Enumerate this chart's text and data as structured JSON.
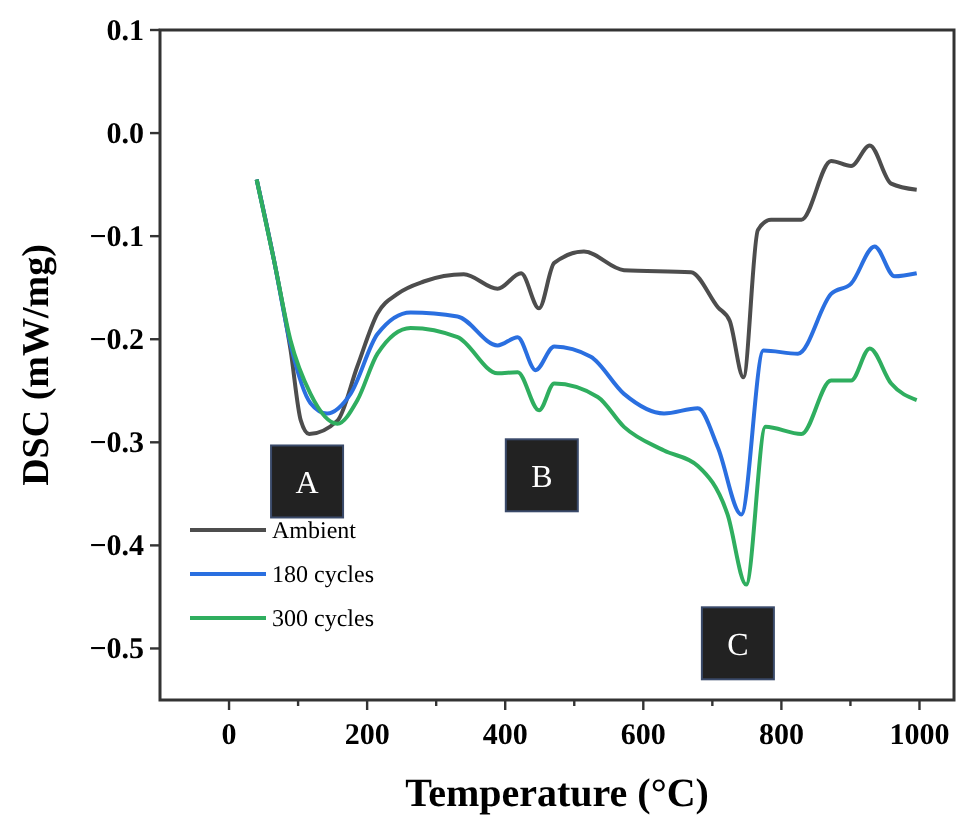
{
  "chart_data": {
    "type": "line",
    "xlabel": "Temperature (°C)",
    "ylabel": "DSC (mW/mg)",
    "xlim": [
      -100,
      1050
    ],
    "ylim": [
      -0.55,
      0.1
    ],
    "xticks": [
      0,
      {
        "value": 100,
        "label": null
      },
      200,
      {
        "value": 300,
        "label": null
      },
      400,
      {
        "value": 500,
        "label": null
      },
      600,
      {
        "value": 700,
        "label": null
      },
      800,
      {
        "value": 900,
        "label": null
      },
      1000
    ],
    "yticks": [
      0.1,
      {
        "value": 0,
        "label": "0.0"
      },
      {
        "value": -0.1,
        "label": "−0.1"
      },
      {
        "value": -0.2,
        "label": "−0.2"
      },
      {
        "value": -0.3,
        "label": "−0.3"
      },
      {
        "value": -0.4,
        "label": "−0.4"
      },
      {
        "value": -0.5,
        "label": "−0.5"
      }
    ],
    "grid": false,
    "legend": "bottom left",
    "marker": "none",
    "line_style": "solid",
    "series": [
      {
        "name": "Ambient",
        "color": "#4d4d4d",
        "x": [
          40,
          65,
          89,
          104,
          116,
          157,
          186,
          215,
          244,
          282,
          340,
          389,
          423,
          449,
          471,
          514,
          572,
          669,
          708,
          725,
          745,
          766,
          785,
          829,
          872,
          901,
          928,
          959,
          996
        ],
        "values": [
          -0.045,
          -0.123,
          -0.21,
          -0.279,
          -0.292,
          -0.279,
          -0.226,
          -0.175,
          -0.156,
          -0.144,
          -0.137,
          -0.151,
          -0.136,
          -0.17,
          -0.126,
          -0.115,
          -0.133,
          -0.135,
          -0.169,
          -0.182,
          -0.237,
          -0.094,
          -0.084,
          -0.084,
          -0.027,
          -0.032,
          -0.012,
          -0.049,
          -0.055
        ]
      },
      {
        "name": "180 cycles",
        "color": "#2a6fe0",
        "x": [
          40,
          65,
          89,
          118,
          142,
          176,
          215,
          263,
          331,
          389,
          418,
          444,
          471,
          524,
          572,
          630,
          679,
          708,
          742,
          774,
          824,
          872,
          901,
          935,
          964,
          996
        ],
        "values": [
          -0.045,
          -0.123,
          -0.205,
          -0.262,
          -0.272,
          -0.253,
          -0.195,
          -0.174,
          -0.178,
          -0.206,
          -0.198,
          -0.23,
          -0.207,
          -0.217,
          -0.253,
          -0.272,
          -0.267,
          -0.305,
          -0.37,
          -0.211,
          -0.214,
          -0.156,
          -0.146,
          -0.11,
          -0.139,
          -0.136
        ]
      },
      {
        "name": "300 cycles",
        "color": "#2fae5f",
        "x": [
          40,
          65,
          89,
          118,
          157,
          186,
          215,
          263,
          331,
          389,
          418,
          449,
          471,
          534,
          572,
          630,
          679,
          722,
          749,
          777,
          829,
          872,
          901,
          928,
          959,
          996
        ],
        "values": [
          -0.045,
          -0.123,
          -0.201,
          -0.253,
          -0.282,
          -0.259,
          -0.214,
          -0.189,
          -0.198,
          -0.233,
          -0.232,
          -0.269,
          -0.243,
          -0.256,
          -0.285,
          -0.308,
          -0.323,
          -0.37,
          -0.438,
          -0.285,
          -0.292,
          -0.24,
          -0.24,
          -0.209,
          -0.243,
          -0.259
        ]
      }
    ],
    "annotations": [
      {
        "text": "A",
        "x": 113,
        "y": -0.338
      },
      {
        "text": "B",
        "x": 453,
        "y": -0.332
      },
      {
        "text": "C",
        "x": 737,
        "y": -0.495
      }
    ]
  }
}
